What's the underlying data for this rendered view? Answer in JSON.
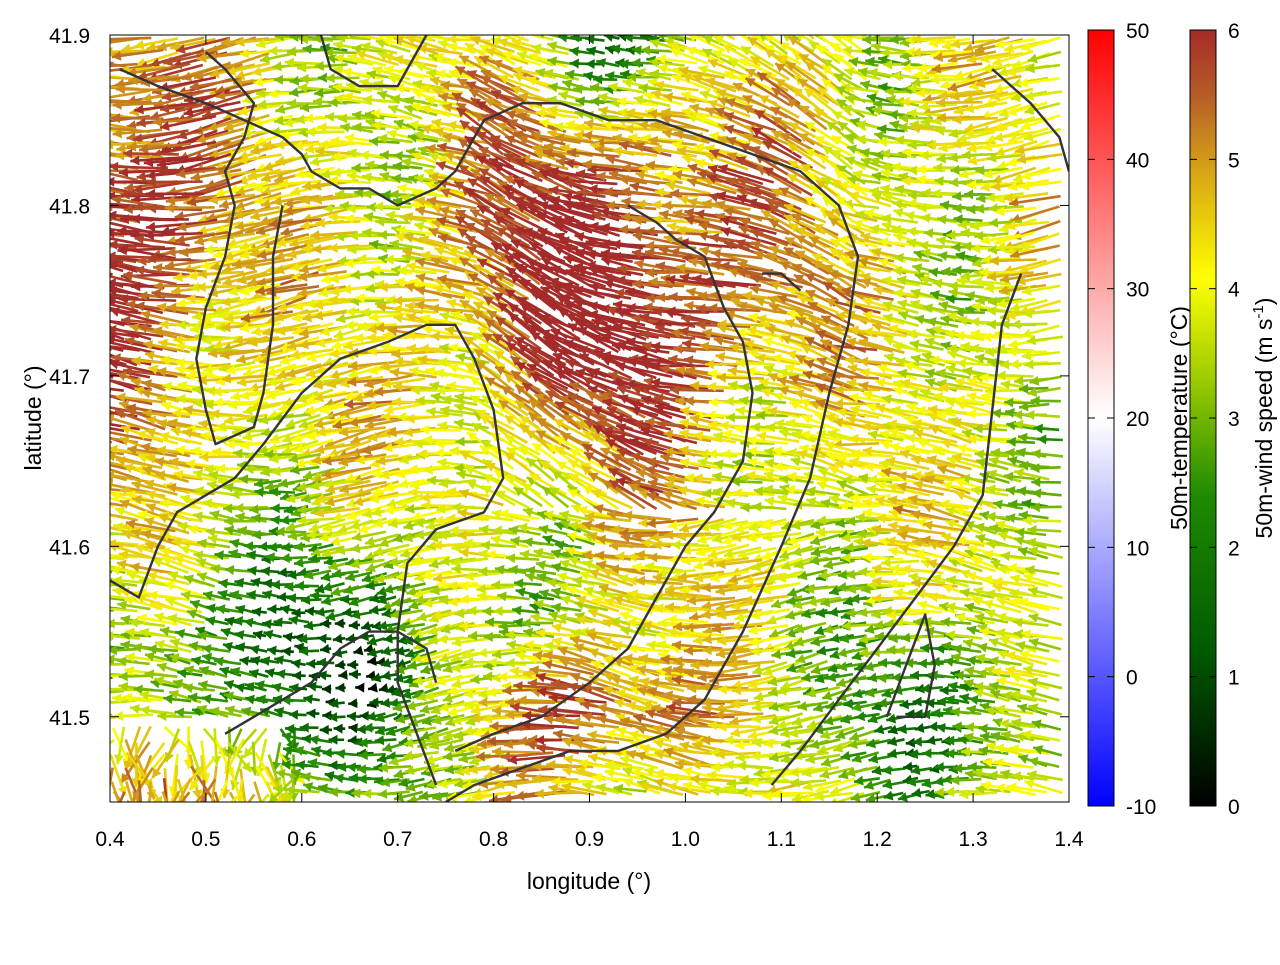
{
  "chart_data": {
    "type": "vector-field",
    "title": "",
    "xlabel": "longitude (°)",
    "ylabel": "latitude (°)",
    "xlim": [
      0.4,
      1.4
    ],
    "ylim": [
      41.45,
      41.9
    ],
    "xticks": [
      "0.4",
      "0.5",
      "0.6",
      "0.7",
      "0.8",
      "0.9",
      "1.0",
      "1.1",
      "1.2",
      "1.3",
      "1.4"
    ],
    "yticks": [
      "41.5",
      "41.6",
      "41.7",
      "41.8",
      "41.9"
    ],
    "grid": false,
    "colorbars": [
      {
        "label": "50m-temperature (°C)",
        "range": [
          -10,
          50
        ],
        "ticks": [
          "-10",
          "0",
          "10",
          "20",
          "30",
          "40",
          "50"
        ],
        "colors": [
          "#0000ff",
          "#ffffff",
          "#ff0000"
        ]
      },
      {
        "label": "50m-wind speed (m s",
        "label_sup": "-1",
        "label_end": ")",
        "range": [
          0,
          6
        ],
        "ticks": [
          "0",
          "1",
          "2",
          "3",
          "4",
          "5",
          "6"
        ],
        "colors": [
          "#000000",
          "#006400",
          "#8fbc00",
          "#ffff00",
          "#d4a000",
          "#b5651d",
          "#a52a2a"
        ]
      }
    ],
    "wind_field": {
      "direction": "mostly westward (toward west / west-north-west)",
      "speed_zones_m_s": [
        {
          "region": "west edge, lat 41.65-41.9",
          "speed": 6
        },
        {
          "region": "central band, lon 0.8-1.15, lat 41.62-41.85",
          "speed": 6
        },
        {
          "region": "southeast, lon 0.8-1.05, lat 41.47-41.52",
          "speed": 6
        },
        {
          "region": "southwest corner, lon 0.4-0.6, lat 41.45-41.5",
          "speed": 6
        },
        {
          "region": "southwest, lon 0.4-0.8, lat 41.48-41.6",
          "speed": 2
        },
        {
          "region": "southeast, lon 1.15-1.4, lat 41.45-41.55",
          "speed": 2.5
        },
        {
          "region": "elsewhere",
          "speed": 4
        }
      ]
    },
    "contours": [
      [
        [
          0.41,
          41.88
        ],
        [
          0.45,
          41.87
        ],
        [
          0.5,
          41.86
        ],
        [
          0.54,
          41.85
        ],
        [
          0.58,
          41.84
        ],
        [
          0.6,
          41.83
        ],
        [
          0.61,
          41.82
        ],
        [
          0.64,
          41.81
        ],
        [
          0.67,
          41.81
        ],
        [
          0.7,
          41.8
        ],
        [
          0.74,
          41.81
        ],
        [
          0.76,
          41.82
        ],
        [
          0.79,
          41.85
        ],
        [
          0.83,
          41.86
        ],
        [
          0.87,
          41.86
        ],
        [
          0.92,
          41.85
        ],
        [
          0.97,
          41.85
        ],
        [
          1.02,
          41.84
        ],
        [
          1.07,
          41.83
        ],
        [
          1.12,
          41.82
        ],
        [
          1.16,
          41.8
        ],
        [
          1.18,
          41.77
        ],
        [
          1.17,
          41.73
        ],
        [
          1.15,
          41.69
        ],
        [
          1.13,
          41.64
        ],
        [
          1.1,
          41.6
        ],
        [
          1.06,
          41.55
        ],
        [
          1.02,
          41.51
        ],
        [
          0.98,
          41.49
        ],
        [
          0.93,
          41.48
        ],
        [
          0.88,
          41.48
        ],
        [
          0.83,
          41.47
        ],
        [
          0.78,
          41.46
        ],
        [
          0.75,
          41.45
        ]
      ],
      [
        [
          0.5,
          41.89
        ],
        [
          0.52,
          41.88
        ],
        [
          0.55,
          41.86
        ],
        [
          0.54,
          41.84
        ],
        [
          0.52,
          41.82
        ],
        [
          0.53,
          41.8
        ],
        [
          0.52,
          41.77
        ],
        [
          0.5,
          41.74
        ],
        [
          0.49,
          41.71
        ],
        [
          0.5,
          41.68
        ],
        [
          0.51,
          41.66
        ],
        [
          0.55,
          41.67
        ],
        [
          0.56,
          41.69
        ],
        [
          0.57,
          41.73
        ],
        [
          0.57,
          41.77
        ],
        [
          0.58,
          41.8
        ]
      ],
      [
        [
          0.4,
          41.58
        ],
        [
          0.43,
          41.57
        ],
        [
          0.45,
          41.6
        ],
        [
          0.47,
          41.62
        ],
        [
          0.5,
          41.63
        ],
        [
          0.53,
          41.64
        ],
        [
          0.56,
          41.66
        ],
        [
          0.6,
          41.69
        ],
        [
          0.64,
          41.71
        ],
        [
          0.69,
          41.72
        ],
        [
          0.73,
          41.73
        ],
        [
          0.76,
          41.73
        ],
        [
          0.78,
          41.71
        ],
        [
          0.8,
          41.68
        ],
        [
          0.81,
          41.64
        ],
        [
          0.79,
          41.62
        ],
        [
          0.74,
          41.61
        ],
        [
          0.71,
          41.59
        ],
        [
          0.7,
          41.55
        ],
        [
          0.7,
          41.52
        ],
        [
          0.72,
          41.49
        ],
        [
          0.74,
          41.46
        ]
      ],
      [
        [
          0.62,
          41.9
        ],
        [
          0.63,
          41.88
        ],
        [
          0.66,
          41.87
        ],
        [
          0.7,
          41.87
        ],
        [
          0.72,
          41.89
        ],
        [
          0.73,
          41.9
        ]
      ],
      [
        [
          0.52,
          41.49
        ],
        [
          0.55,
          41.5
        ],
        [
          0.58,
          41.51
        ],
        [
          0.61,
          41.52
        ],
        [
          0.64,
          41.54
        ],
        [
          0.67,
          41.55
        ],
        [
          0.7,
          41.55
        ],
        [
          0.73,
          41.54
        ],
        [
          0.74,
          41.52
        ]
      ],
      [
        [
          0.94,
          41.8
        ],
        [
          0.97,
          41.79
        ],
        [
          0.99,
          41.78
        ],
        [
          1.02,
          41.77
        ],
        [
          1.04,
          41.74
        ],
        [
          1.06,
          41.72
        ],
        [
          1.07,
          41.69
        ],
        [
          1.06,
          41.65
        ],
        [
          1.03,
          41.62
        ],
        [
          1.0,
          41.6
        ],
        [
          0.97,
          41.57
        ],
        [
          0.94,
          41.54
        ],
        [
          0.9,
          41.52
        ],
        [
          0.85,
          41.5
        ],
        [
          0.8,
          41.49
        ],
        [
          0.76,
          41.48
        ]
      ],
      [
        [
          1.08,
          41.76
        ],
        [
          1.1,
          41.76
        ],
        [
          1.12,
          41.75
        ]
      ],
      [
        [
          1.35,
          41.76
        ],
        [
          1.33,
          41.73
        ],
        [
          1.32,
          41.68
        ],
        [
          1.31,
          41.63
        ],
        [
          1.28,
          41.6
        ],
        [
          1.24,
          41.57
        ],
        [
          1.2,
          41.54
        ],
        [
          1.16,
          41.51
        ],
        [
          1.12,
          41.48
        ],
        [
          1.09,
          41.46
        ]
      ],
      [
        [
          1.22,
          41.5
        ],
        [
          1.25,
          41.5
        ],
        [
          1.26,
          41.53
        ],
        [
          1.25,
          41.56
        ],
        [
          1.23,
          41.53
        ],
        [
          1.21,
          41.5
        ]
      ],
      [
        [
          1.32,
          41.88
        ],
        [
          1.36,
          41.86
        ],
        [
          1.39,
          41.84
        ],
        [
          1.4,
          41.82
        ]
      ]
    ]
  }
}
